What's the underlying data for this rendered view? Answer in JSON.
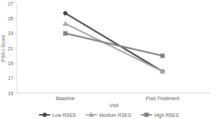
{
  "chart_data": {
    "type": "line",
    "x_label": "Visit",
    "y_label": "PSS-I Score",
    "categories": [
      "Baseline",
      "Post-Treatment"
    ],
    "series": [
      {
        "name": "Low RSES",
        "color": "#404040",
        "marker": "circle",
        "values": [
          25.7,
          17.9
        ]
      },
      {
        "name": "Medium RSES",
        "color": "#a6a6a6",
        "marker": "triangle",
        "values": [
          24.3,
          17.9
        ]
      },
      {
        "name": "High RSES",
        "color": "#7f7f7f",
        "marker": "square",
        "values": [
          23.0,
          20.0
        ]
      }
    ],
    "ylim": [
      15,
      27
    ],
    "yticks": [
      15,
      17,
      19,
      21,
      23,
      25,
      27
    ],
    "grid": false,
    "legend": "bottom"
  }
}
